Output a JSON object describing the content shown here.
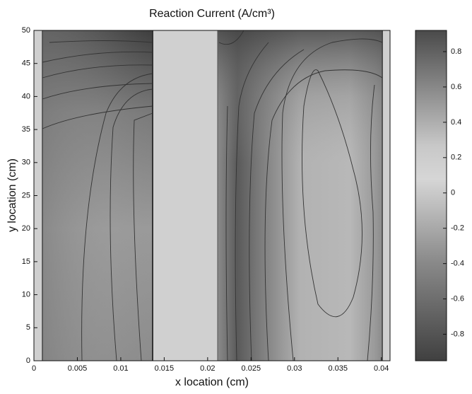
{
  "chart_data": {
    "type": "contour",
    "title": "Reaction Current (A/cm³)",
    "x_label": "x location (cm)",
    "y_label": "y location (cm)",
    "xlim": [
      0,
      0.041
    ],
    "ylim": [
      0,
      50
    ],
    "xticks": [
      0,
      0.005,
      0.01,
      0.015,
      0.02,
      0.025,
      0.03,
      0.035,
      0.04
    ],
    "yticks": [
      0,
      5,
      10,
      15,
      20,
      25,
      30,
      35,
      40,
      45,
      50
    ],
    "colorbar": {
      "clim": [
        -0.95,
        0.92
      ],
      "ticks": [
        0.8,
        0.6,
        0.4,
        0.2,
        0,
        -0.2,
        -0.4,
        -0.6,
        -0.8
      ]
    }
  }
}
